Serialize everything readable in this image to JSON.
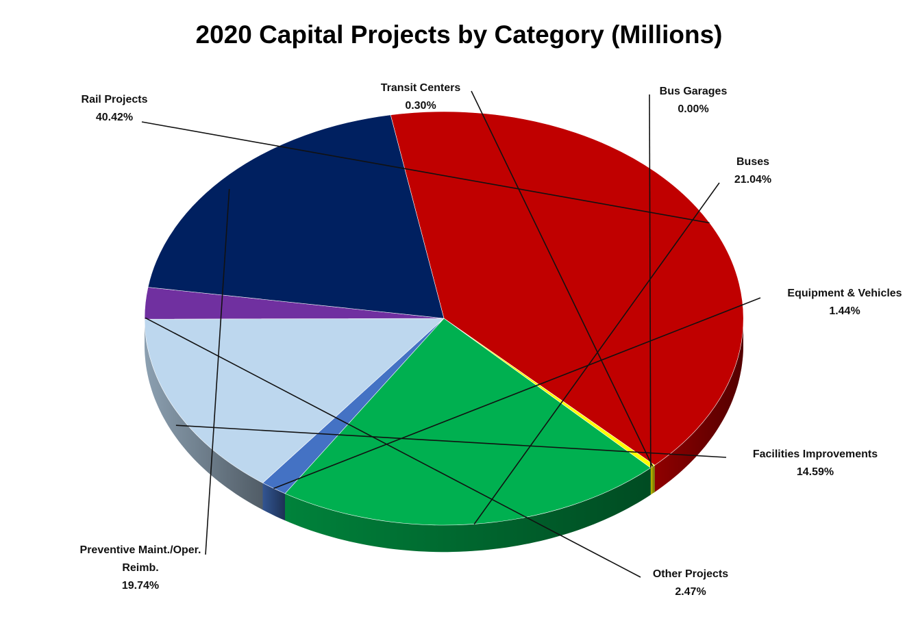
{
  "chart_data": {
    "type": "pie",
    "title": "2020 Capital Projects by Category (Millions)",
    "categories": [
      "Rail Projects",
      "Transit Centers",
      "Bus Garages",
      "Buses",
      "Equipment & Vehicles",
      "Facilities Improvements",
      "Other Projects",
      "Preventive Maint./Oper. Reimb."
    ],
    "values": [
      40.42,
      0.3,
      0.0,
      21.04,
      1.44,
      14.59,
      2.47,
      19.74
    ],
    "value_labels": [
      "40.42%",
      "0.30%",
      "0.00%",
      "21.04%",
      "1.44%",
      "14.59%",
      "2.47%",
      "19.74%"
    ],
    "label_lines": [
      [
        "Rail Projects"
      ],
      [
        "Transit Centers"
      ],
      [
        "Bus Garages"
      ],
      [
        "Buses"
      ],
      [
        "Equipment & Vehicles"
      ],
      [
        "Facilities Improvements"
      ],
      [
        "Other Projects"
      ],
      [
        "Preventive Maint./Oper.",
        "Reimb."
      ]
    ],
    "colors": [
      "#c00000",
      "#ffff00",
      "#ff9900",
      "#00b050",
      "#4472c4",
      "#bdd7ee",
      "#7030a0",
      "#002060"
    ],
    "style": "3d-pie",
    "legend": "none",
    "data_labels": "outside-with-leader-lines"
  }
}
